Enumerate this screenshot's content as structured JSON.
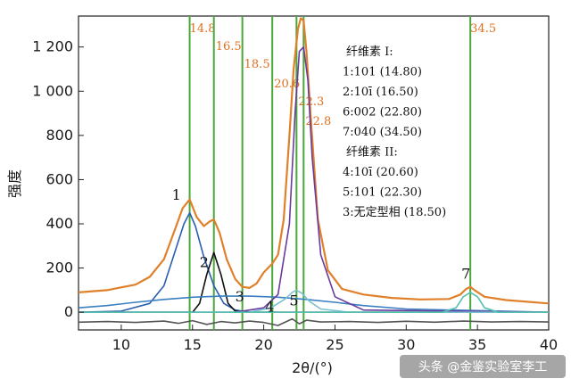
{
  "chart_data": {
    "type": "line",
    "xlabel": "2θ/(°)",
    "ylabel": "强度",
    "xlim": [
      7,
      40
    ],
    "ylim": [
      -80,
      1340
    ],
    "x_ticks": [
      "10",
      "15",
      "20",
      "25",
      "30",
      "35",
      "40"
    ],
    "y_ticks": [
      "0",
      "200",
      "400",
      "600",
      "800",
      "1 000",
      "1 200"
    ],
    "x_tick_values": [
      10,
      15,
      20,
      25,
      30,
      35,
      40
    ],
    "y_tick_values": [
      0,
      200,
      400,
      600,
      800,
      1000,
      1200
    ],
    "grid": false,
    "reference_lines": [
      {
        "x": 14.8,
        "label": "14.8"
      },
      {
        "x": 16.5,
        "label": "16.5"
      },
      {
        "x": 18.5,
        "label": "18.5"
      },
      {
        "x": 20.6,
        "label": "20.6"
      },
      {
        "x": 22.3,
        "label": "22.3"
      },
      {
        "x": 22.8,
        "label": "22.8"
      },
      {
        "x": 34.5,
        "label": "34.5"
      }
    ],
    "peaks": [
      {
        "label": "1",
        "x": 14.8,
        "y": 500
      },
      {
        "label": "2",
        "x": 16.5,
        "y": 260
      },
      {
        "label": "3",
        "x": 18.5,
        "y": 90
      },
      {
        "label": "4",
        "x": 20.6,
        "y": 60
      },
      {
        "label": "5",
        "x": 22.3,
        "y": 80
      },
      {
        "label": "7",
        "x": 34.5,
        "y": 120
      }
    ],
    "series": [
      {
        "color": "#e0802a",
        "x": [
          7,
          9,
          11,
          12,
          13,
          13.8,
          14.3,
          14.8,
          15.3,
          15.8,
          16.2,
          16.5,
          16.9,
          17.4,
          18,
          18.5,
          19,
          19.5,
          20,
          20.6,
          21,
          21.4,
          21.8,
          22.1,
          22.4,
          22.6,
          22.8,
          23,
          23.3,
          23.8,
          24.5,
          25.5,
          27,
          29,
          31,
          33,
          33.8,
          34.2,
          34.5,
          34.9,
          35.5,
          37,
          40
        ],
        "y": [
          90,
          100,
          125,
          160,
          240,
          380,
          470,
          510,
          430,
          390,
          410,
          420,
          360,
          240,
          150,
          115,
          110,
          130,
          180,
          220,
          260,
          420,
          800,
          1100,
          1280,
          1330,
          1320,
          1180,
          880,
          420,
          190,
          105,
          80,
          65,
          58,
          60,
          80,
          105,
          115,
          95,
          70,
          55,
          40
        ]
      },
      {
        "color": "#2a5fb0",
        "x": [
          7,
          10,
          12,
          13,
          13.8,
          14.4,
          14.8,
          15.2,
          15.8,
          16.5,
          17.2,
          18,
          19,
          21
        ],
        "y": [
          0,
          5,
          40,
          120,
          280,
          400,
          450,
          390,
          250,
          120,
          40,
          10,
          0,
          0
        ]
      },
      {
        "color": "#111111",
        "x": [
          7,
          15,
          15.5,
          16,
          16.5,
          17,
          17.5,
          18,
          19,
          40
        ],
        "y": [
          0,
          0,
          40,
          170,
          270,
          170,
          40,
          5,
          0,
          0
        ]
      },
      {
        "color": "#3a7fc0",
        "x": [
          7,
          9,
          11,
          13,
          15,
          17,
          19,
          21,
          23,
          25,
          27,
          30,
          40
        ],
        "y": [
          20,
          30,
          45,
          58,
          68,
          73,
          73,
          68,
          58,
          45,
          30,
          15,
          0
        ]
      },
      {
        "color": "#6a3aa0",
        "x": [
          7,
          18,
          20,
          21,
          21.8,
          22.2,
          22.5,
          22.8,
          23.1,
          23.4,
          24,
          25,
          27,
          40
        ],
        "y": [
          0,
          0,
          20,
          80,
          400,
          900,
          1180,
          1200,
          1050,
          700,
          260,
          70,
          10,
          0
        ]
      },
      {
        "color": "#7ac0d0",
        "x": [
          7,
          19,
          20.5,
          21.5,
          22,
          22.3,
          22.7,
          23.2,
          24,
          26,
          40
        ],
        "y": [
          0,
          0,
          20,
          60,
          90,
          100,
          85,
          50,
          15,
          0,
          0
        ]
      },
      {
        "color": "#55c0b0",
        "x": [
          7,
          32.5,
          33.5,
          34,
          34.5,
          35,
          35.5,
          36.5,
          40
        ],
        "y": [
          0,
          0,
          20,
          70,
          90,
          70,
          20,
          0,
          0
        ]
      },
      {
        "color": "#555555",
        "x": [
          7,
          9,
          11,
          13,
          14,
          15,
          16,
          17,
          18,
          19,
          20,
          21,
          22,
          22.5,
          23,
          24,
          26,
          28,
          30,
          32,
          34,
          36,
          38,
          40
        ],
        "y": [
          -45,
          -42,
          -46,
          -40,
          -50,
          -38,
          -55,
          -42,
          -48,
          -40,
          -46,
          -60,
          -30,
          -52,
          -36,
          -44,
          -42,
          -46,
          -41,
          -45,
          -40,
          -44,
          -42,
          -44
        ]
      }
    ],
    "legend": {
      "lines": [
        "纤维素 I:",
        "1:101 (14.80)",
        "2:10ī (16.50)",
        "6:002 (22.80)",
        "7:040 (34.50)",
        "纤维素 II:",
        "4:10ī (20.60)",
        "5:101 (22.30)",
        "3:无定型相 (18.50)"
      ],
      "placement": "top-right"
    }
  },
  "watermark": "头条 @金鉴实验室李工"
}
